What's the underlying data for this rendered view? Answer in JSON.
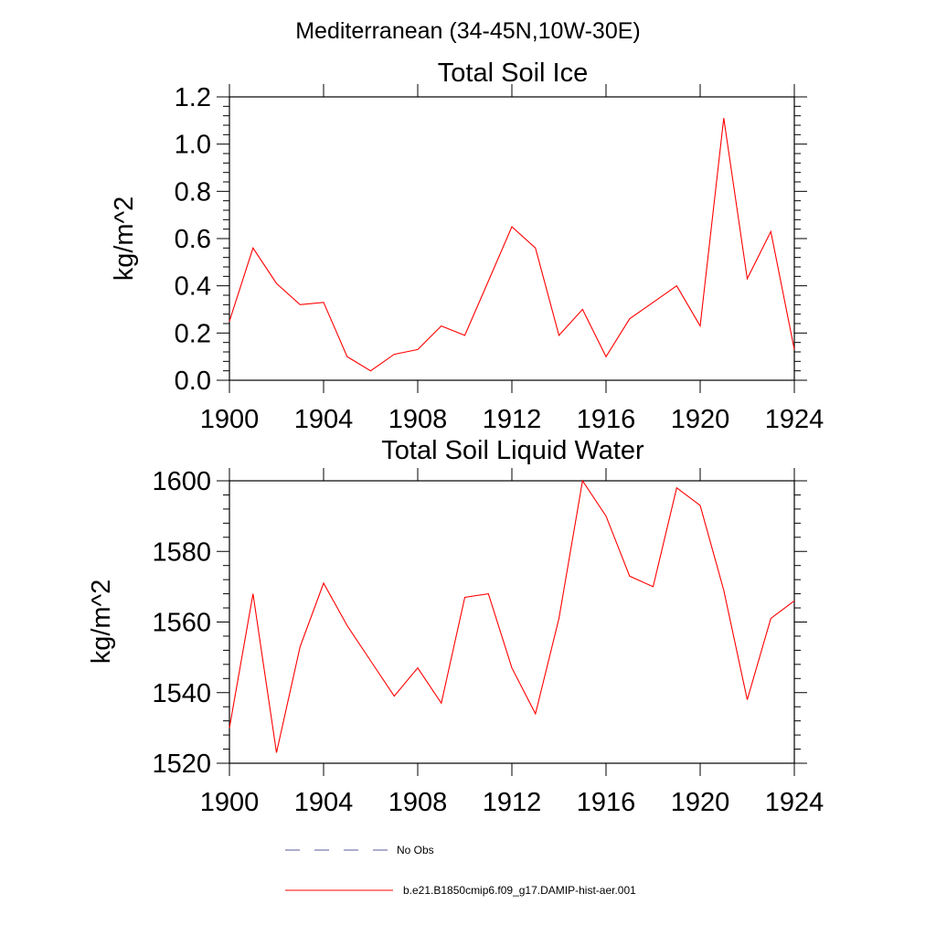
{
  "figure": {
    "supertitle": "Mediterranean (34-45N,10W-30E)"
  },
  "chart_data": [
    {
      "type": "line",
      "title": "Total Soil Ice",
      "xlabel": "",
      "ylabel": "kg/m^2",
      "xlim": [
        1900,
        1924
      ],
      "ylim": [
        0.0,
        1.2
      ],
      "x_ticks": [
        1900,
        1904,
        1908,
        1912,
        1916,
        1920,
        1924
      ],
      "x_tick_labels": [
        "1900",
        "1904",
        "1908",
        "1912",
        "1916",
        "1920",
        "1924"
      ],
      "y_ticks": [
        0.0,
        0.2,
        0.4,
        0.6,
        0.8,
        1.0,
        1.2
      ],
      "y_tick_labels": [
        "0.0",
        "0.2",
        "0.4",
        "0.6",
        "0.8",
        "1.0",
        "1.2"
      ],
      "grid": false,
      "x": [
        1900,
        1901,
        1902,
        1903,
        1904,
        1905,
        1906,
        1907,
        1908,
        1909,
        1910,
        1911,
        1912,
        1913,
        1914,
        1915,
        1916,
        1917,
        1918,
        1919,
        1920,
        1921,
        1922,
        1923,
        1924
      ],
      "series": [
        {
          "name": "b.e21.B1850cmip6.f09_g17.DAMIP-hist-aer.001",
          "color": "#ff0000",
          "values": [
            0.25,
            0.56,
            0.41,
            0.32,
            0.33,
            0.1,
            0.04,
            0.11,
            0.13,
            0.23,
            0.19,
            0.42,
            0.65,
            0.56,
            0.19,
            0.3,
            0.1,
            0.26,
            0.33,
            0.4,
            0.23,
            1.11,
            0.43,
            0.63,
            0.13
          ]
        }
      ]
    },
    {
      "type": "line",
      "title": "Total Soil Liquid Water",
      "xlabel": "",
      "ylabel": "kg/m^2",
      "xlim": [
        1900,
        1924
      ],
      "ylim": [
        1520,
        1600
      ],
      "x_ticks": [
        1900,
        1904,
        1908,
        1912,
        1916,
        1920,
        1924
      ],
      "x_tick_labels": [
        "1900",
        "1904",
        "1908",
        "1912",
        "1916",
        "1920",
        "1924"
      ],
      "y_ticks": [
        1520,
        1540,
        1560,
        1580,
        1600
      ],
      "y_tick_labels": [
        "1520",
        "1540",
        "1560",
        "1580",
        "1600"
      ],
      "grid": false,
      "x": [
        1900,
        1901,
        1902,
        1903,
        1904,
        1905,
        1906,
        1907,
        1908,
        1909,
        1910,
        1911,
        1912,
        1913,
        1914,
        1915,
        1916,
        1917,
        1918,
        1919,
        1920,
        1921,
        1922,
        1923,
        1924
      ],
      "series": [
        {
          "name": "b.e21.B1850cmip6.f09_g17.DAMIP-hist-aer.001",
          "color": "#ff0000",
          "values": [
            1530,
            1568,
            1523,
            1553,
            1571,
            1559,
            1549,
            1539,
            1547,
            1537,
            1567,
            1568,
            1547,
            1534,
            1561,
            1600,
            1590,
            1573,
            1570,
            1598,
            1593,
            1569,
            1538,
            1561,
            1566
          ]
        }
      ]
    }
  ],
  "legend": {
    "placement": "bottom",
    "items": [
      {
        "label": "No Obs",
        "color": "#5a5a9e",
        "style": "dashed"
      },
      {
        "label": "b.e21.B1850cmip6.f09_g17.DAMIP-hist-aer.001",
        "color": "#ff0000",
        "style": "solid"
      }
    ]
  }
}
